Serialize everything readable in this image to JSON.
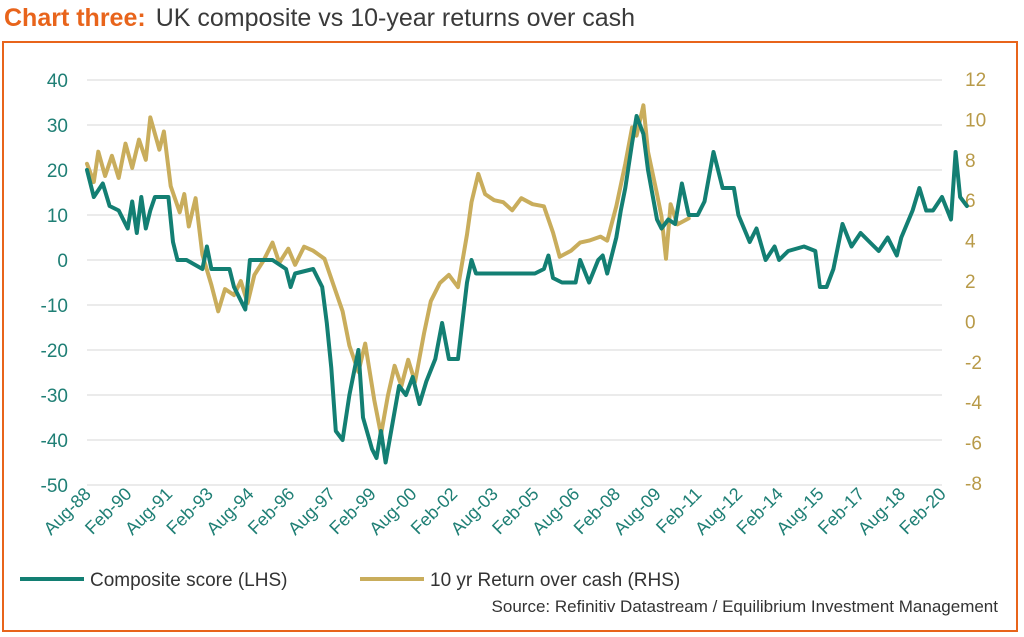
{
  "header": {
    "lead": "Chart three:",
    "title": "UK composite vs 10-year returns over cash"
  },
  "source": "Source: Refinitiv Datastream / Equilibrium Investment Management",
  "colors": {
    "accent": "#e8641b",
    "composite": "#137f73",
    "return": "#c9ad5c",
    "grid": "#d7d7d7",
    "left_axis_text": "#1f7f75",
    "right_axis_text": "#b89a48"
  },
  "chart_data": {
    "type": "line",
    "title": "UK composite vs 10-year returns over cash",
    "x_ticks": [
      "Aug-88",
      "Feb-90",
      "Aug-91",
      "Feb-93",
      "Aug-94",
      "Feb-96",
      "Aug-97",
      "Feb-99",
      "Aug-00",
      "Feb-02",
      "Aug-03",
      "Feb-05",
      "Aug-06",
      "Feb-08",
      "Aug-09",
      "Feb-11",
      "Aug-12",
      "Feb-14",
      "Aug-15",
      "Feb-17",
      "Aug-18",
      "Feb-20"
    ],
    "x_range": [
      "Aug-88",
      "Feb-20"
    ],
    "y_left": {
      "ticks": [
        "40",
        "30",
        "20",
        "10",
        "0",
        "-10",
        "-20",
        "-30",
        "-40",
        "-50"
      ],
      "range": [
        -50,
        40
      ]
    },
    "y_right": {
      "ticks": [
        "12",
        "10",
        "8",
        "6",
        "4",
        "2",
        "0",
        "-2",
        "-4",
        "-6",
        "-8"
      ],
      "range": [
        -8,
        12
      ]
    },
    "grid": "horizontal",
    "legend_position": "bottom",
    "series": [
      {
        "name": "Composite score (LHS)",
        "axis": "left",
        "points": [
          [
            "Aug-88",
            20
          ],
          [
            "Nov-88",
            14
          ],
          [
            "Mar-89",
            17
          ],
          [
            "Jun-89",
            12
          ],
          [
            "Oct-89",
            11
          ],
          [
            "Feb-90",
            7
          ],
          [
            "Apr-90",
            13
          ],
          [
            "Jun-90",
            6
          ],
          [
            "Aug-90",
            14
          ],
          [
            "Oct-90",
            7
          ],
          [
            "Dec-90",
            11
          ],
          [
            "Feb-91",
            14
          ],
          [
            "Aug-91",
            14
          ],
          [
            "Oct-91",
            4
          ],
          [
            "Dec-91",
            0
          ],
          [
            "Apr-92",
            0
          ],
          [
            "Nov-92",
            -2
          ],
          [
            "Jan-93",
            3
          ],
          [
            "Mar-93",
            -2
          ],
          [
            "Nov-93",
            -2
          ],
          [
            "Jan-94",
            -6
          ],
          [
            "Jun-94",
            -11
          ],
          [
            "Aug-94",
            0
          ],
          [
            "Jun-95",
            0
          ],
          [
            "Dec-95",
            -2
          ],
          [
            "Feb-96",
            -6
          ],
          [
            "Apr-96",
            -3
          ],
          [
            "Dec-96",
            -2
          ],
          [
            "Apr-97",
            -6
          ],
          [
            "Jun-97",
            -14
          ],
          [
            "Aug-97",
            -24
          ],
          [
            "Oct-97",
            -38
          ],
          [
            "Jan-98",
            -40
          ],
          [
            "Apr-98",
            -30
          ],
          [
            "Aug-98",
            -20
          ],
          [
            "Oct-98",
            -35
          ],
          [
            "Feb-99",
            -42
          ],
          [
            "Apr-99",
            -44
          ],
          [
            "Jun-99",
            -38
          ],
          [
            "Aug-99",
            -45
          ],
          [
            "Feb-00",
            -28
          ],
          [
            "May-00",
            -30
          ],
          [
            "Aug-00",
            -26
          ],
          [
            "Nov-00",
            -32
          ],
          [
            "Feb-01",
            -27
          ],
          [
            "Jun-01",
            -22
          ],
          [
            "Sep-01",
            -14
          ],
          [
            "Dec-01",
            -22
          ],
          [
            "Apr-02",
            -22
          ],
          [
            "Aug-02",
            -5
          ],
          [
            "Oct-02",
            0
          ],
          [
            "Dec-02",
            -3
          ],
          [
            "Aug-03",
            -3
          ],
          [
            "Feb-05",
            -3
          ],
          [
            "Jun-05",
            -2
          ],
          [
            "Aug-05",
            1
          ],
          [
            "Oct-05",
            -4
          ],
          [
            "Feb-06",
            -5
          ],
          [
            "Aug-06",
            -5
          ],
          [
            "Oct-06",
            0
          ],
          [
            "Feb-07",
            -5
          ],
          [
            "Jun-07",
            0
          ],
          [
            "Aug-07",
            1
          ],
          [
            "Oct-07",
            -3
          ],
          [
            "Feb-08",
            5
          ],
          [
            "Apr-08",
            11
          ],
          [
            "Jun-08",
            16
          ],
          [
            "Sep-08",
            26
          ],
          [
            "Nov-08",
            32
          ],
          [
            "Feb-09",
            28
          ],
          [
            "Apr-09",
            20
          ],
          [
            "Aug-09",
            9
          ],
          [
            "Oct-09",
            7
          ],
          [
            "Jan-10",
            9
          ],
          [
            "Apr-10",
            8
          ],
          [
            "Jul-10",
            17
          ],
          [
            "Oct-10",
            10
          ],
          [
            "Feb-11",
            10
          ],
          [
            "May-11",
            13
          ],
          [
            "Sep-11",
            24
          ],
          [
            "Jan-12",
            16
          ],
          [
            "Jun-12",
            16
          ],
          [
            "Aug-12",
            10
          ],
          [
            "Jan-13",
            4
          ],
          [
            "Apr-13",
            7
          ],
          [
            "Aug-13",
            0
          ],
          [
            "Dec-13",
            3
          ],
          [
            "Feb-14",
            0
          ],
          [
            "Jun-14",
            2
          ],
          [
            "Jan-15",
            3
          ],
          [
            "Jun-15",
            2
          ],
          [
            "Aug-15",
            -6
          ],
          [
            "Nov-15",
            -6
          ],
          [
            "Feb-16",
            -2
          ],
          [
            "Jun-16",
            8
          ],
          [
            "Oct-16",
            3
          ],
          [
            "Feb-17",
            6
          ],
          [
            "Jun-17",
            4
          ],
          [
            "Oct-17",
            2
          ],
          [
            "Feb-18",
            5
          ],
          [
            "Jun-18",
            1
          ],
          [
            "Aug-18",
            5
          ],
          [
            "Jan-19",
            11
          ],
          [
            "Apr-19",
            16
          ],
          [
            "Jul-19",
            11
          ],
          [
            "Oct-19",
            11
          ],
          [
            "Feb-20",
            14
          ],
          [
            "Jun-20",
            9
          ],
          [
            "Aug-20",
            24
          ],
          [
            "Oct-20",
            14
          ],
          [
            "Jan-21",
            12
          ]
        ]
      },
      {
        "name": "10 yr Return over cash (RHS)",
        "axis": "right",
        "points": [
          [
            "Aug-88",
            7.8
          ],
          [
            "Nov-88",
            6.9
          ],
          [
            "Jan-89",
            8.4
          ],
          [
            "Apr-89",
            7.2
          ],
          [
            "Jul-89",
            8.2
          ],
          [
            "Oct-89",
            7.1
          ],
          [
            "Jan-90",
            8.8
          ],
          [
            "Apr-90",
            7.6
          ],
          [
            "Jul-90",
            9.0
          ],
          [
            "Oct-90",
            8.0
          ],
          [
            "Dec-90",
            10.1
          ],
          [
            "Apr-91",
            8.5
          ],
          [
            "Jun-91",
            9.4
          ],
          [
            "Sep-91",
            6.7
          ],
          [
            "Jan-92",
            5.4
          ],
          [
            "Mar-92",
            6.3
          ],
          [
            "May-92",
            4.7
          ],
          [
            "Aug-92",
            6.1
          ],
          [
            "Nov-92",
            3.3
          ],
          [
            "Mar-93",
            1.8
          ],
          [
            "Jun-93",
            0.5
          ],
          [
            "Sep-93",
            1.6
          ],
          [
            "Jan-94",
            1.3
          ],
          [
            "Apr-94",
            2.0
          ],
          [
            "Jul-94",
            0.9
          ],
          [
            "Oct-94",
            2.3
          ],
          [
            "Feb-95",
            3.0
          ],
          [
            "Jun-95",
            3.9
          ],
          [
            "Sep-95",
            2.9
          ],
          [
            "Jan-96",
            3.6
          ],
          [
            "Apr-96",
            2.8
          ],
          [
            "Aug-96",
            3.7
          ],
          [
            "Dec-96",
            3.5
          ],
          [
            "May-97",
            3.1
          ],
          [
            "Sep-97",
            1.8
          ],
          [
            "Jan-98",
            0.5
          ],
          [
            "Apr-98",
            -1.2
          ],
          [
            "Aug-98",
            -2.5
          ],
          [
            "Nov-98",
            -1.1
          ],
          [
            "Mar-99",
            -3.9
          ],
          [
            "Jun-99",
            -5.6
          ],
          [
            "Sep-99",
            -3.7
          ],
          [
            "Dec-99",
            -2.2
          ],
          [
            "Mar-00",
            -3.2
          ],
          [
            "Jun-00",
            -1.9
          ],
          [
            "Sep-00",
            -3.0
          ],
          [
            "Jan-01",
            -0.6
          ],
          [
            "Apr-01",
            1.0
          ],
          [
            "Aug-01",
            1.9
          ],
          [
            "Dec-01",
            2.3
          ],
          [
            "Apr-02",
            1.7
          ],
          [
            "Aug-02",
            4.3
          ],
          [
            "Oct-02",
            5.9
          ],
          [
            "Jan-03",
            7.3
          ],
          [
            "Apr-03",
            6.3
          ],
          [
            "Aug-03",
            6.0
          ],
          [
            "Dec-03",
            5.9
          ],
          [
            "Apr-04",
            5.5
          ],
          [
            "Aug-04",
            6.1
          ],
          [
            "Jan-05",
            5.8
          ],
          [
            "Jun-05",
            5.7
          ],
          [
            "Oct-05",
            4.4
          ],
          [
            "Jan-06",
            3.2
          ],
          [
            "Jun-06",
            3.5
          ],
          [
            "Oct-06",
            3.9
          ],
          [
            "Feb-07",
            4.0
          ],
          [
            "Jul-07",
            4.2
          ],
          [
            "Oct-07",
            4.0
          ],
          [
            "Feb-08",
            5.7
          ],
          [
            "Jun-08",
            7.8
          ],
          [
            "Sep-08",
            9.6
          ],
          [
            "Nov-08",
            9.2
          ],
          [
            "Feb-09",
            10.7
          ],
          [
            "Apr-09",
            8.4
          ],
          [
            "Aug-09",
            6.3
          ],
          [
            "Oct-09",
            5.2
          ],
          [
            "Dec-09",
            3.1
          ],
          [
            "Feb-10",
            5.8
          ],
          [
            "May-10",
            4.8
          ],
          [
            "Oct-10",
            5.1
          ]
        ]
      }
    ]
  }
}
